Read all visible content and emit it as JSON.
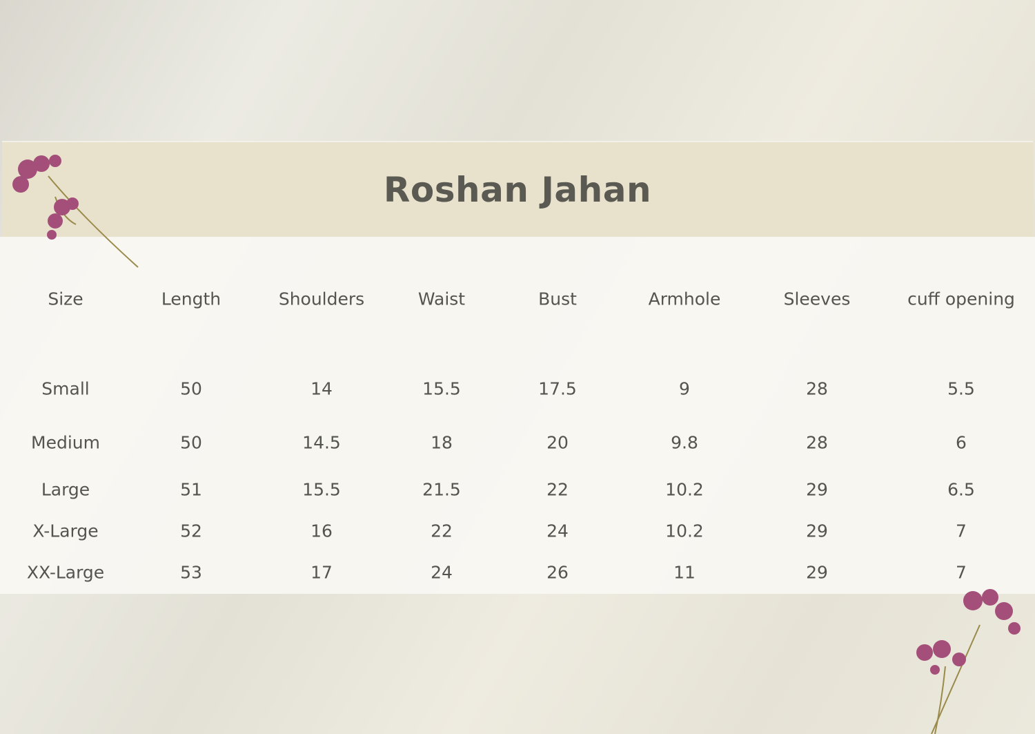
{
  "title": "Roshan Jahan",
  "columns": [
    "Size",
    "Length",
    "Shoulders",
    "Waist",
    "Bust",
    "Armhole",
    "Sleeves",
    "cuff opening"
  ],
  "rows": [
    [
      "Small",
      "50",
      "14",
      "15.5",
      "17.5",
      "9",
      "28",
      "5.5"
    ],
    [
      "Medium",
      "50",
      "14.5",
      "18",
      "20",
      "9.8",
      "28",
      "6"
    ],
    [
      "Large",
      "51",
      "15.5",
      "21.5",
      "22",
      "10.2",
      "29",
      "6.5"
    ],
    [
      "X-Large",
      "52",
      "16",
      "22",
      "24",
      "10.2",
      "29",
      "7"
    ],
    [
      "XX-Large",
      "53",
      "17",
      "24",
      "26",
      "11",
      "29",
      "7"
    ]
  ],
  "colors": {
    "header_band": "#e8e2cd",
    "text": "#55554f",
    "flower": "#a34f7a"
  },
  "icons": [
    "flower-decoration-top-left",
    "flower-decoration-bottom-right"
  ]
}
